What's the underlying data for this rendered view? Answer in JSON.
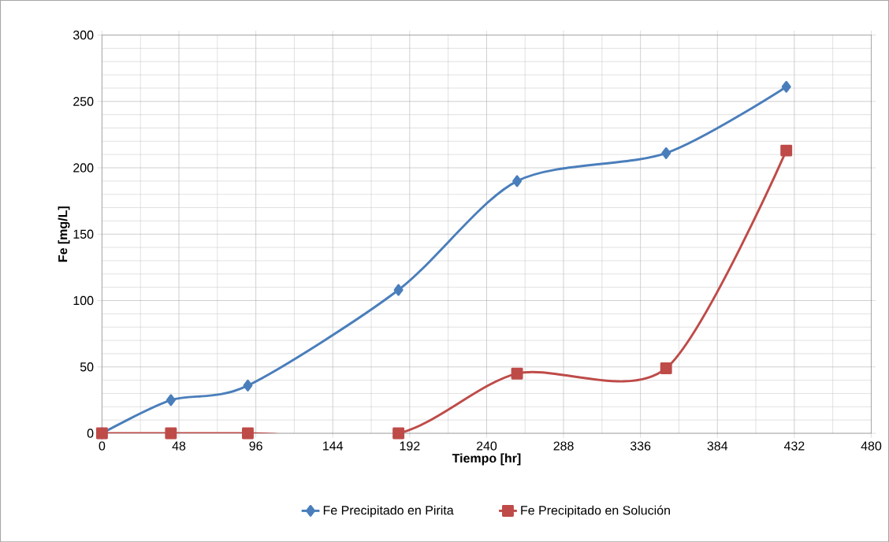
{
  "chart_data": {
    "type": "line",
    "xlabel": "Tiempo [hr]",
    "ylabel": "Fe [mg/L]",
    "xlim": [
      0,
      480
    ],
    "xticks": [
      0,
      48,
      96,
      144,
      192,
      240,
      288,
      336,
      384,
      432,
      480
    ],
    "ylim": [
      0,
      300
    ],
    "yticks": [
      0,
      50,
      100,
      150,
      200,
      250,
      300
    ],
    "grid": true,
    "legend": "bottom",
    "line_style": "solid",
    "series": [
      {
        "name": "Fe Precipitado en Pirita",
        "color": "#4a7ebb",
        "marker": "diamond",
        "x": [
          0,
          43,
          91,
          185,
          259,
          352,
          427
        ],
        "values": [
          0,
          25,
          36,
          108,
          190,
          211,
          261
        ]
      },
      {
        "name": "Fe Precipitado en Solución",
        "color": "#be4b48",
        "marker": "square",
        "x": [
          0,
          43,
          91,
          185,
          259,
          352,
          427
        ],
        "values": [
          0,
          0,
          0,
          0,
          45,
          49,
          213
        ]
      }
    ]
  }
}
